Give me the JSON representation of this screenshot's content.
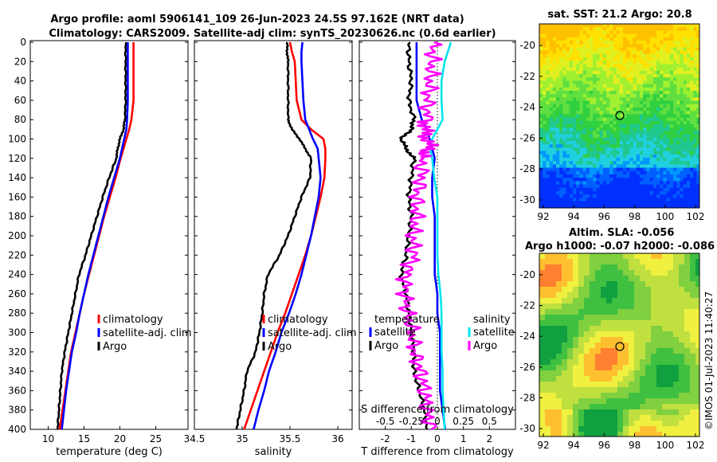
{
  "header": {
    "title_line1": "Argo profile: aoml 5906141_109 26-Jun-2023 24.5S 97.162E (NRT data)",
    "title_line2": "Climatology: CARS2009. Satellite-adj clim: synTS_20230626.nc (0.6d earlier)"
  },
  "colors": {
    "climatology": "#ff0000",
    "satellite": "#0000ff",
    "argo": "#000000",
    "salinity_satellite": "#00e5ee",
    "salinity_argo": "#ff00ff"
  },
  "depth_ticks": [
    "0",
    "20",
    "40",
    "60",
    "80",
    "100",
    "120",
    "140",
    "160",
    "180",
    "200",
    "220",
    "240",
    "260",
    "280",
    "300",
    "320",
    "340",
    "360",
    "380",
    "400"
  ],
  "chart_data": [
    {
      "type": "line",
      "title": "",
      "xlabel": "temperature (deg C)",
      "ylabel": "",
      "xlim": [
        7.5,
        29.5
      ],
      "ylim": [
        400,
        0
      ],
      "xticks": [
        "10",
        "15",
        "20",
        "25"
      ],
      "legend": [
        "climatology",
        "satellite-adj. clim",
        "Argo"
      ],
      "depths": [
        0,
        20,
        40,
        60,
        80,
        90,
        100,
        110,
        120,
        140,
        160,
        180,
        200,
        220,
        240,
        260,
        280,
        300,
        320,
        340,
        360,
        380,
        400
      ],
      "series": [
        {
          "name": "climatology",
          "values": [
            21.9,
            21.9,
            21.9,
            21.9,
            21.6,
            21.3,
            20.9,
            20.5,
            20.1,
            19.4,
            18.6,
            17.8,
            17.1,
            16.4,
            15.7,
            15.0,
            14.4,
            13.8,
            13.2,
            12.8,
            12.4,
            12.0,
            11.6
          ]
        },
        {
          "name": "satellite-adj. clim",
          "values": [
            21.1,
            21.1,
            21.1,
            21.1,
            21.0,
            20.9,
            20.6,
            20.3,
            20.0,
            19.2,
            18.4,
            17.7,
            17.0,
            16.3,
            15.6,
            15.0,
            14.4,
            13.9,
            13.3,
            12.9,
            12.5,
            12.2,
            11.9
          ]
        },
        {
          "name": "Argo",
          "values": [
            20.8,
            20.8,
            20.8,
            20.8,
            20.7,
            20.5,
            20.0,
            19.7,
            19.5,
            18.5,
            17.6,
            16.8,
            16.0,
            15.2,
            14.3,
            13.8,
            13.3,
            12.8,
            12.3,
            11.9,
            11.7,
            11.5,
            11.3
          ]
        }
      ]
    },
    {
      "type": "line",
      "title": "",
      "xlabel": "salinity",
      "ylabel": "",
      "xlim": [
        34.5,
        36.15
      ],
      "ylim": [
        400,
        0
      ],
      "xticks": [
        "34.5",
        "35",
        "35.5",
        "36"
      ],
      "legend": [
        "climatology",
        "satellite-adj. clim",
        "Argo"
      ],
      "depths": [
        0,
        10,
        20,
        40,
        60,
        80,
        90,
        100,
        110,
        120,
        140,
        160,
        180,
        200,
        220,
        240,
        260,
        280,
        300,
        320,
        340,
        360,
        380,
        400
      ],
      "series": [
        {
          "name": "climatology",
          "values": [
            35.5,
            35.52,
            35.55,
            35.56,
            35.57,
            35.62,
            35.72,
            35.85,
            35.87,
            35.87,
            35.86,
            35.82,
            35.77,
            35.72,
            35.66,
            35.59,
            35.52,
            35.45,
            35.37,
            35.3,
            35.23,
            35.16,
            35.09,
            35.02
          ]
        },
        {
          "name": "satellite-adj. clim",
          "values": [
            35.63,
            35.62,
            35.62,
            35.63,
            35.64,
            35.66,
            35.7,
            35.74,
            35.79,
            35.8,
            35.82,
            35.8,
            35.76,
            35.72,
            35.67,
            35.62,
            35.56,
            35.49,
            35.41,
            35.35,
            35.28,
            35.23,
            35.17,
            35.12
          ]
        },
        {
          "name": "Argo",
          "values": [
            35.47,
            35.47,
            35.48,
            35.48,
            35.48,
            35.48,
            35.52,
            35.6,
            35.66,
            35.72,
            35.71,
            35.62,
            35.55,
            35.48,
            35.39,
            35.27,
            35.23,
            35.21,
            35.18,
            35.14,
            35.05,
            35.02,
            34.98,
            34.94
          ]
        }
      ]
    },
    {
      "type": "line",
      "title": "",
      "xlabel": "T difference from climatology",
      "xlabel_top": "S difference from climatology",
      "ylabel": "",
      "xlim": [
        -3,
        3
      ],
      "ylim": [
        400,
        0
      ],
      "xticks": [
        "-2",
        "-1",
        "0",
        "1",
        "2"
      ],
      "xticks_top": [
        "-0.5",
        "-0.25",
        "0",
        "0.25",
        "0.5"
      ],
      "legend_left_title": "temperature",
      "legend_right_title": "salinity",
      "legend": [
        "satellite",
        "Argo",
        "satellite",
        "Argo"
      ],
      "depths": [
        0,
        20,
        40,
        60,
        80,
        90,
        100,
        110,
        120,
        140,
        160,
        180,
        200,
        220,
        240,
        260,
        280,
        300,
        320,
        340,
        360,
        380,
        400
      ],
      "series": [
        {
          "name": "temperature satellite",
          "values": [
            -0.8,
            -0.8,
            -0.8,
            -0.8,
            -0.6,
            -0.4,
            -0.3,
            -0.2,
            -0.1,
            -0.2,
            -0.2,
            -0.1,
            -0.1,
            -0.1,
            -0.1,
            0.0,
            0.0,
            0.1,
            0.1,
            0.1,
            0.1,
            0.2,
            0.3
          ]
        },
        {
          "name": "temperature Argo",
          "values": [
            -1.1,
            -1.1,
            -1.0,
            -1.1,
            -0.9,
            -1.0,
            -1.4,
            -1.2,
            -0.9,
            -1.0,
            -1.1,
            -1.0,
            -1.1,
            -1.2,
            -1.4,
            -1.2,
            -1.1,
            -1.0,
            -0.9,
            -0.9,
            -0.7,
            -0.5,
            -0.4
          ]
        },
        {
          "name": "salinity satellite",
          "values": [
            0.13,
            0.07,
            0.04,
            0.04,
            0.05,
            0.0,
            -0.05,
            -0.07,
            -0.05,
            -0.03,
            0.0,
            0.0,
            0.0,
            0.0,
            0.01,
            0.03,
            0.04,
            0.04,
            0.04,
            0.05,
            0.05,
            0.06,
            0.07
          ]
        },
        {
          "name": "salinity Argo",
          "values": [
            -0.04,
            -0.05,
            -0.07,
            -0.09,
            -0.1,
            -0.12,
            -0.1,
            -0.08,
            -0.15,
            -0.15,
            -0.2,
            -0.2,
            -0.24,
            -0.22,
            -0.3,
            -0.31,
            -0.29,
            -0.24,
            -0.22,
            -0.16,
            -0.12,
            -0.1,
            -0.06
          ]
        }
      ]
    }
  ],
  "maps": {
    "sst": {
      "title": "sat. SST: 21.2 Argo: 20.8",
      "xticks": [
        "92",
        "94",
        "96",
        "98",
        "100",
        "102"
      ],
      "yticks": [
        "-20",
        "-22",
        "-24",
        "-26",
        "-28",
        "-30"
      ]
    },
    "sla": {
      "title_line1": "Altim. SLA: -0.056",
      "title_line2": "Argo h1000: -0.07 h2000: -0.086",
      "xticks": [
        "92",
        "94",
        "96",
        "98",
        "100",
        "102"
      ],
      "yticks": [
        "-20",
        "-22",
        "-24",
        "-26",
        "-28",
        "-30"
      ]
    }
  },
  "credit": "©IMOS 01-Jul-2023 11:40:27"
}
